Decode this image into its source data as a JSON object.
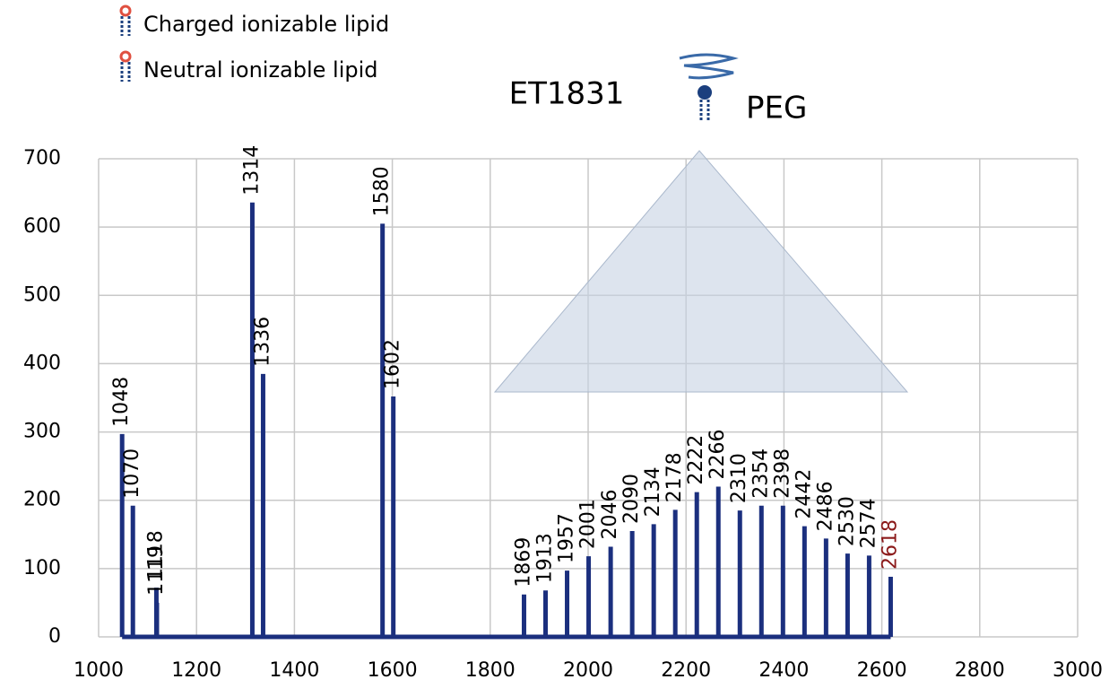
{
  "chart_data": {
    "type": "stick",
    "title": "ET1831",
    "annotations": [
      "Charged ionizable lipid",
      "Neutral ionizable lipid",
      "PEG"
    ],
    "x": [
      1048,
      1070,
      1118,
      1119,
      1314,
      1336,
      1580,
      1602,
      1869,
      1913,
      1957,
      2001,
      2046,
      2090,
      2134,
      2178,
      2222,
      2266,
      2310,
      2354,
      2398,
      2442,
      2486,
      2530,
      2574,
      2618
    ],
    "series": [
      {
        "color": "#1b2f7e",
        "values": [
          297,
          192,
          72,
          50,
          636,
          385,
          605,
          352,
          62,
          68,
          97,
          118,
          132,
          155,
          165,
          186,
          212,
          220,
          185,
          192,
          192,
          162,
          144,
          122,
          119,
          88
        ]
      }
    ],
    "label_colors": [
      "#000",
      "#000",
      "#000",
      "#000",
      "#000",
      "#000",
      "#000",
      "#000",
      "#000",
      "#000",
      "#000",
      "#000",
      "#000",
      "#000",
      "#000",
      "#000",
      "#000",
      "#000",
      "#000",
      "#000",
      "#000",
      "#000",
      "#000",
      "#000",
      "#000",
      "#8b1a1a"
    ],
    "xlim": [
      1000,
      3000
    ],
    "xticks": [
      1000,
      1200,
      1400,
      1600,
      1800,
      2000,
      2200,
      2400,
      2600,
      2800,
      3000
    ],
    "ylim": [
      0,
      700
    ],
    "yticks": [
      0,
      100,
      200,
      300,
      400,
      500,
      600,
      700
    ],
    "grid": true
  }
}
